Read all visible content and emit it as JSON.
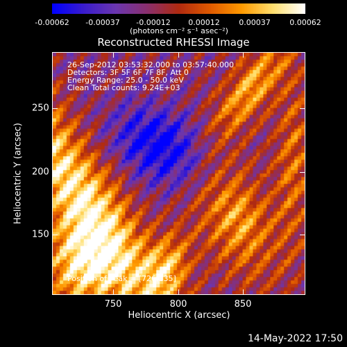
{
  "colorbar": {
    "ticks": [
      "-0.00062",
      "-0.00037",
      "-0.00012",
      "0.00012",
      "0.00037",
      "0.00062"
    ],
    "units": "(photons cm⁻² s⁻¹ asec⁻²)",
    "range": [
      -0.00062,
      0.00062
    ],
    "colormap": [
      "#0000ff",
      "#3a1ccc",
      "#6b36b0",
      "#8a2f6e",
      "#b02a10",
      "#e05a00",
      "#ff9a00",
      "#ffe070",
      "#ffffff"
    ]
  },
  "title": "Reconstructed RHESSI Image",
  "info": {
    "time": "26-Sep-2012 03:53:32.000 to 03:57:40.000",
    "detectors": "Detectors: 3F 5F 6F 7F 8F, Att 0",
    "energy": "Energy Range: 25.0 - 50.0 keV",
    "clean": "Clean    Total counts: 9.24E+03",
    "peak": "Position of Peak = [726,135]"
  },
  "chart_data": {
    "type": "heatmap",
    "title": "Reconstructed RHESSI Image",
    "xlabel": "Heliocentric X (arcsec)",
    "ylabel": "Heliocentric Y (arcsec)",
    "xlim": [
      705,
      892
    ],
    "ylim": [
      100,
      280
    ],
    "xticks": [
      750,
      800,
      850
    ],
    "yticks": [
      150,
      200,
      250
    ],
    "value_range": [
      -0.00062,
      0.00062
    ],
    "peak": [
      726,
      135
    ]
  },
  "axes": {
    "x_ticks": [
      "750",
      "800",
      "850"
    ],
    "y_ticks": [
      "150",
      "200",
      "250"
    ],
    "xlabel": "Heliocentric X (arcsec)",
    "ylabel": "Heliocentric Y (arcsec)"
  },
  "timestamp": "14-May-2022 17:50"
}
